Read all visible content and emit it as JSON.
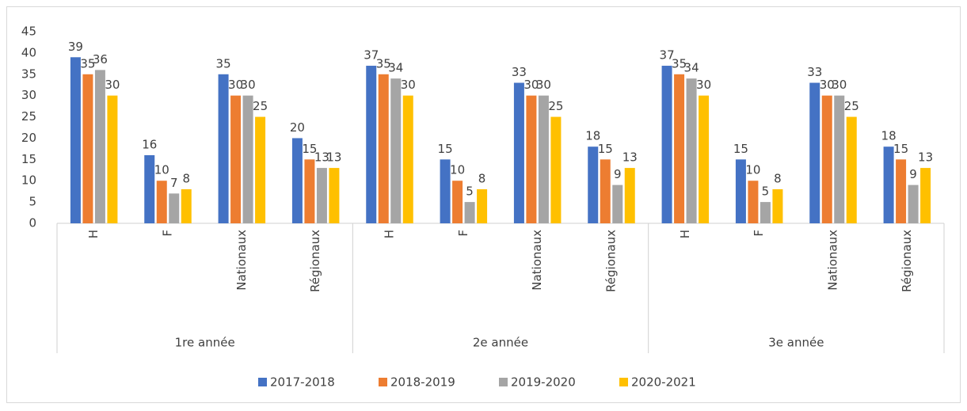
{
  "chart_data": {
    "type": "bar",
    "categories": [
      "H",
      "F",
      "Nationaux",
      "Régionaux",
      "H",
      "F",
      "Nationaux",
      "Régionaux",
      "H",
      "F",
      "Nationaux",
      "Régionaux"
    ],
    "groups": [
      "1re année",
      "2e année",
      "3e année"
    ],
    "series": [
      {
        "name": "2017-2018",
        "color": "#4472c4",
        "values": [
          39,
          16,
          35,
          20,
          37,
          15,
          33,
          18,
          37,
          15,
          33,
          18
        ]
      },
      {
        "name": "2018-2019",
        "color": "#ed7d31",
        "values": [
          35,
          10,
          30,
          15,
          35,
          10,
          30,
          15,
          35,
          10,
          30,
          15
        ]
      },
      {
        "name": "2019-2020",
        "color": "#a5a5a5",
        "values": [
          36,
          7,
          30,
          13,
          34,
          5,
          30,
          9,
          34,
          5,
          30,
          9
        ]
      },
      {
        "name": "2020-2021",
        "color": "#ffc000",
        "values": [
          30,
          8,
          25,
          13,
          30,
          8,
          25,
          13,
          30,
          8,
          25,
          13
        ]
      }
    ],
    "ylim": [
      0,
      45
    ],
    "yticks": [
      0,
      5,
      10,
      15,
      20,
      25,
      30,
      35,
      40,
      45
    ],
    "grid": false,
    "data_labels": true,
    "legend": "bottom"
  }
}
